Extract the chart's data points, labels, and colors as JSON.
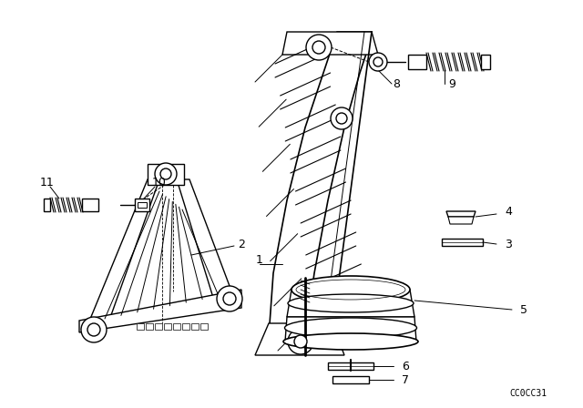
{
  "bg_color": "#ffffff",
  "line_color": "#000000",
  "part_code": "CC0CC31",
  "figsize": [
    6.4,
    4.48
  ],
  "dpi": 100
}
